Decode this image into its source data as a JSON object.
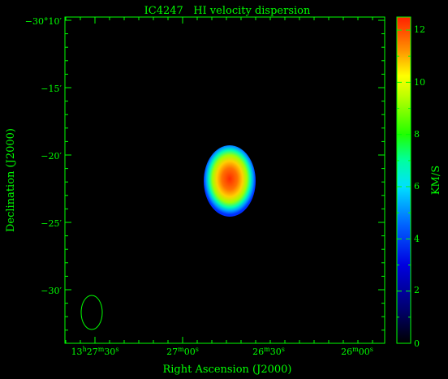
{
  "chart_data": {
    "type": "heatmap",
    "title": "IC4247   HI velocity dispersion",
    "xlabel": "Right Ascension (J2000)",
    "ylabel": "Declination (J2000)",
    "colorbar_label": "KM/S",
    "colorbar_range": [
      0,
      12.5
    ],
    "colorbar_ticks": [
      "0",
      "2",
      "4",
      "6",
      "8",
      "10",
      "12"
    ],
    "x_ticks": [
      {
        "h": "13",
        "m": "27",
        "s": "30"
      },
      {
        "m": "27",
        "s": "00"
      },
      {
        "m": "26",
        "s": "30"
      },
      {
        "m": "26",
        "s": "00"
      }
    ],
    "y_ticks": [
      "−30°10′",
      "−15′",
      "−20′",
      "−25′",
      "−30′"
    ],
    "source_peak_kms": 12,
    "beam": "ellipse",
    "colors": {
      "axis": "#00ff00",
      "background": "#000000",
      "colormap": [
        "#000000",
        "#0000aa",
        "#0050ff",
        "#00dcff",
        "#00ff80",
        "#40ff00",
        "#ffff00",
        "#ff8000",
        "#ff2000"
      ]
    }
  }
}
